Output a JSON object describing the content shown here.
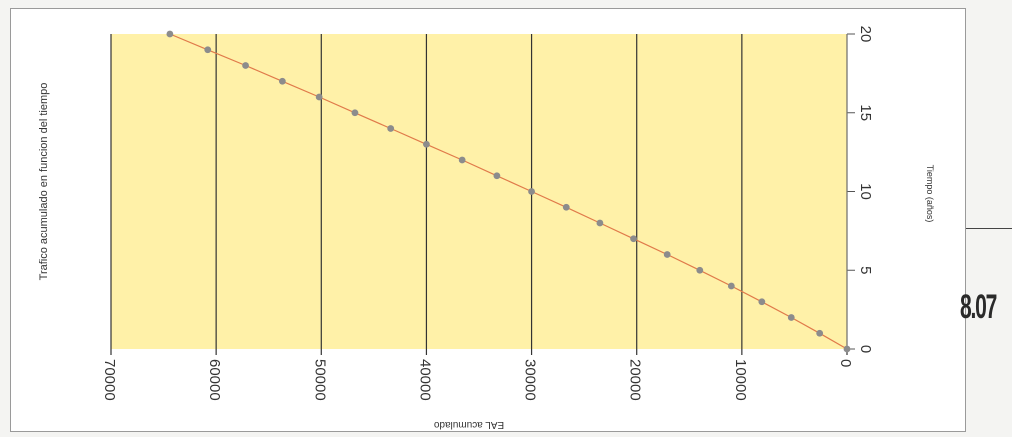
{
  "page_label": "8.07",
  "chart_data": {
    "type": "scatter",
    "title": "Trafico acumulado en funcion del tiempo",
    "xlabel": "EAL acumulado",
    "ylabel": "Tiempo (años)",
    "x_ticks": [
      70000,
      60000,
      50000,
      40000,
      30000,
      20000,
      10000,
      0
    ],
    "y_ticks": [
      0,
      5,
      10,
      15,
      20
    ],
    "xlim": [
      0,
      70000
    ],
    "ylim": [
      0,
      20
    ],
    "series": [
      {
        "x": [
          0,
          2600,
          5300,
          8100,
          11000,
          14000,
          17100,
          20300,
          23500,
          26700,
          30000,
          33300,
          36600,
          40000,
          43400,
          46800,
          50200,
          53700,
          57200,
          60800,
          64400
        ],
        "y": [
          0,
          1,
          2,
          3,
          4,
          5,
          6,
          7,
          8,
          9,
          10,
          11,
          12,
          13,
          14,
          15,
          16,
          17,
          18,
          19,
          20
        ]
      }
    ],
    "plot_background": "#fff1a8",
    "grid_color": "#333333",
    "marker_color": "#8c8c8c",
    "line_color": "#e07a4a",
    "grid": true,
    "orientation": "rotated-90"
  }
}
